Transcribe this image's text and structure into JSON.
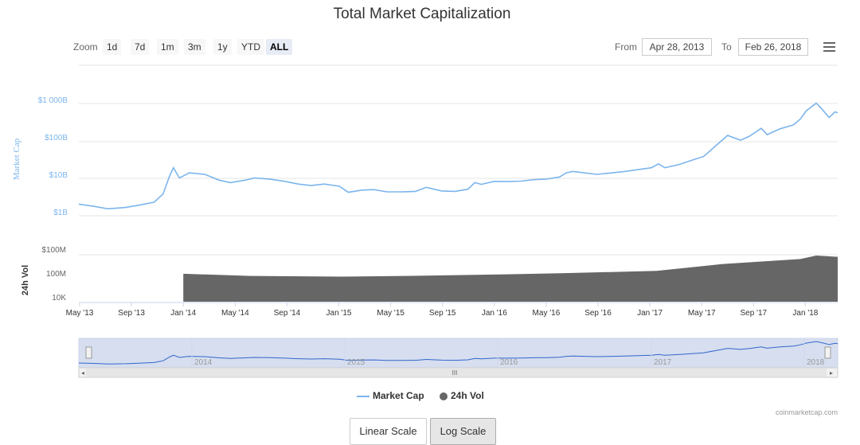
{
  "title": "Total Market Capitalization",
  "zoom": {
    "label": "Zoom",
    "buttons": [
      "1d",
      "7d",
      "1m",
      "3m",
      "1y",
      "YTD",
      "ALL"
    ],
    "active": "ALL"
  },
  "range": {
    "from_label": "From",
    "from_value": "Apr 28, 2013",
    "to_label": "To",
    "to_value": "Feb 26, 2018"
  },
  "colors": {
    "market_cap": "#7cb5ec",
    "volume": "#666666",
    "navigator_fill": "#ccd6eb",
    "navigator_line": "#3366cc"
  },
  "chart_data": {
    "type": "line",
    "title": "Total Market Capitalization",
    "x_range": [
      "2013-04-28",
      "2018-02-26"
    ],
    "x_tick_labels": [
      "May '13",
      "Sep '13",
      "Jan '14",
      "May '14",
      "Sep '14",
      "Jan '15",
      "May '15",
      "Sep '15",
      "Jan '16",
      "May '16",
      "Sep '16",
      "Jan '17",
      "May '17",
      "Sep '17",
      "Jan '18"
    ],
    "market_cap_axis": {
      "label": "Market Cap",
      "scale": "log",
      "tick_labels": [
        "$1B",
        "$10B",
        "$100B",
        "$1 000B"
      ]
    },
    "volume_axis": {
      "label": "24h Vol",
      "scale": "log",
      "tick_labels": [
        "10K",
        "100M",
        "$100M"
      ]
    },
    "series": [
      {
        "name": "Market Cap",
        "unit": "USD billions",
        "points": [
          [
            "2013-04-28",
            1.6
          ],
          [
            "2013-06-01",
            1.4
          ],
          [
            "2013-07-05",
            1.2
          ],
          [
            "2013-08-15",
            1.3
          ],
          [
            "2013-09-15",
            1.5
          ],
          [
            "2013-10-20",
            1.8
          ],
          [
            "2013-11-10",
            3.0
          ],
          [
            "2013-11-25",
            9.0
          ],
          [
            "2013-12-04",
            15
          ],
          [
            "2013-12-18",
            8
          ],
          [
            "2014-01-10",
            11
          ],
          [
            "2014-02-15",
            10
          ],
          [
            "2014-03-20",
            7
          ],
          [
            "2014-04-15",
            6
          ],
          [
            "2014-05-20",
            7
          ],
          [
            "2014-06-10",
            8
          ],
          [
            "2014-07-15",
            7.5
          ],
          [
            "2014-08-20",
            6.5
          ],
          [
            "2014-09-20",
            5.5
          ],
          [
            "2014-10-20",
            5
          ],
          [
            "2014-11-20",
            5.5
          ],
          [
            "2014-12-25",
            4.8
          ],
          [
            "2015-01-15",
            3.3
          ],
          [
            "2015-02-15",
            3.8
          ],
          [
            "2015-03-15",
            3.9
          ],
          [
            "2015-04-15",
            3.4
          ],
          [
            "2015-05-20",
            3.4
          ],
          [
            "2015-06-20",
            3.5
          ],
          [
            "2015-07-15",
            4.5
          ],
          [
            "2015-08-20",
            3.6
          ],
          [
            "2015-09-20",
            3.5
          ],
          [
            "2015-10-20",
            4.0
          ],
          [
            "2015-11-05",
            6.0
          ],
          [
            "2015-11-20",
            5.4
          ],
          [
            "2015-12-20",
            6.5
          ],
          [
            "2016-01-20",
            6.4
          ],
          [
            "2016-02-20",
            6.6
          ],
          [
            "2016-03-20",
            7.2
          ],
          [
            "2016-04-20",
            7.5
          ],
          [
            "2016-05-20",
            8.5
          ],
          [
            "2016-06-05",
            11
          ],
          [
            "2016-06-20",
            12
          ],
          [
            "2016-07-15",
            11
          ],
          [
            "2016-08-15",
            10
          ],
          [
            "2016-09-20",
            11
          ],
          [
            "2016-10-20",
            12
          ],
          [
            "2016-11-20",
            13.5
          ],
          [
            "2016-12-20",
            15
          ],
          [
            "2017-01-05",
            19
          ],
          [
            "2017-01-20",
            15
          ],
          [
            "2017-02-20",
            18
          ],
          [
            "2017-03-20",
            23
          ],
          [
            "2017-04-20",
            30
          ],
          [
            "2017-05-20",
            60
          ],
          [
            "2017-06-15",
            110
          ],
          [
            "2017-07-15",
            82
          ],
          [
            "2017-08-05",
            105
          ],
          [
            "2017-09-01",
            170
          ],
          [
            "2017-09-15",
            115
          ],
          [
            "2017-10-15",
            165
          ],
          [
            "2017-11-15",
            210
          ],
          [
            "2017-12-01",
            300
          ],
          [
            "2017-12-15",
            500
          ],
          [
            "2018-01-07",
            800
          ],
          [
            "2018-01-20",
            560
          ],
          [
            "2018-02-06",
            330
          ],
          [
            "2018-02-20",
            470
          ],
          [
            "2018-02-26",
            440
          ]
        ]
      },
      {
        "name": "24h Vol",
        "unit": "USD",
        "points": [
          [
            "2013-12-27",
            50000000
          ],
          [
            "2014-06-01",
            25000000
          ],
          [
            "2015-01-01",
            20000000
          ],
          [
            "2015-06-01",
            25000000
          ],
          [
            "2016-01-01",
            40000000
          ],
          [
            "2016-06-01",
            60000000
          ],
          [
            "2017-01-01",
            120000000
          ],
          [
            "2017-06-01",
            1000000000
          ],
          [
            "2017-12-01",
            5000000000
          ],
          [
            "2018-01-07",
            15000000000
          ],
          [
            "2018-02-26",
            10000000000
          ]
        ]
      }
    ],
    "navigator_labels": [
      "2014",
      "2015",
      "2016",
      "2017",
      "2018"
    ],
    "legend": [
      "Market Cap",
      "24h Vol"
    ],
    "legend_position": "bottom",
    "grid": true
  },
  "legend": {
    "market_cap": "Market Cap",
    "volume": "24h Vol"
  },
  "credit": "coinmarketcap.com",
  "scale_buttons": {
    "linear": "Linear Scale",
    "log": "Log Scale",
    "active": "log"
  }
}
